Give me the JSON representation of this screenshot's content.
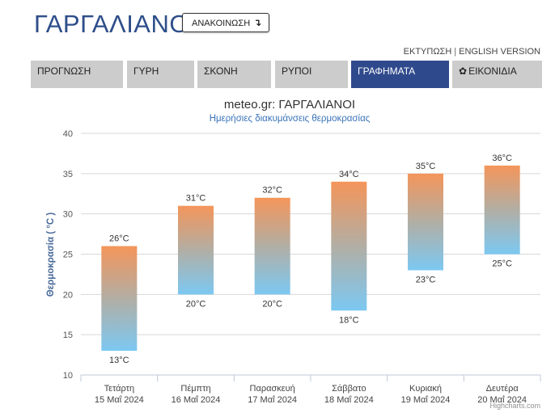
{
  "header": {
    "title": "ΓΑΡΓΑΛΙΑΝΟΙ",
    "announce_label": "ΑΝΑΚΟΙΝΩΣΗ",
    "announce_icon": "arrow-down-icon",
    "print_link": "ΕΚΤΥΠΩΣΗ",
    "separator": "|",
    "english_link": "ENGLISH VERSION"
  },
  "tabs": [
    {
      "label": "ΠΡΟΓΝΩΣΗ",
      "active": false
    },
    {
      "label": "ΓΥΡΗ",
      "active": false
    },
    {
      "label": "ΣΚΟΝΗ",
      "active": false
    },
    {
      "label": "ΡΥΠΟΙ",
      "active": false
    },
    {
      "label": "ΓΡΑΦΗΜΑΤΑ",
      "active": true
    },
    {
      "label": "ΕΙΚΟΝΙΔΙΑ",
      "active": false,
      "icon": "gear-icon"
    }
  ],
  "colors": {
    "accent": "#2f4a8c",
    "tab_inactive": "#cccccc",
    "bar_top": "#f4955a",
    "bar_mid": "#b2aea4",
    "bar_bottom": "#7cc8f2",
    "subtitle": "#3a73b8"
  },
  "chart_data": {
    "type": "columnrange",
    "title": "meteo.gr: ΓΑΡΓΑΛΙΑΝΟΙ",
    "subtitle": "Ημερήσιες διακυμάνσεις θερμοκρασίας",
    "ylabel": "Θερμοκρασία ( °C )",
    "ylim": [
      10,
      40
    ],
    "yticks": [
      10,
      15,
      20,
      25,
      30,
      35,
      40
    ],
    "grid": true,
    "unit": "°C",
    "categories": [
      {
        "day": "Τετάρτη",
        "date": "15 Μαΐ 2024"
      },
      {
        "day": "Πέμπτη",
        "date": "16 Μαΐ 2024"
      },
      {
        "day": "Παρασκευή",
        "date": "17 Μαΐ 2024"
      },
      {
        "day": "Σάββατο",
        "date": "18 Μαΐ 2024"
      },
      {
        "day": "Κυριακή",
        "date": "19 Μαΐ 2024"
      },
      {
        "day": "Δευτέρα",
        "date": "20 Μαΐ 2024"
      }
    ],
    "low": [
      13,
      20,
      20,
      18,
      23,
      25
    ],
    "high": [
      26,
      31,
      32,
      34,
      35,
      36
    ],
    "credits": "Highcharts.com"
  }
}
